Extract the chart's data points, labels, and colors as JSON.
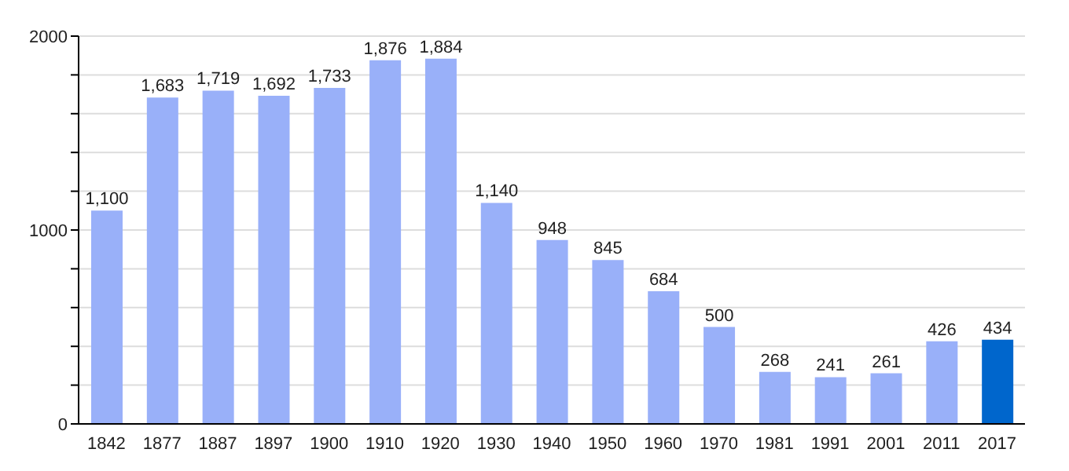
{
  "chart_data": {
    "type": "bar",
    "categories": [
      "1842",
      "1877",
      "1887",
      "1897",
      "1900",
      "1910",
      "1920",
      "1930",
      "1940",
      "1950",
      "1960",
      "1970",
      "1981",
      "1991",
      "2001",
      "2011",
      "2017"
    ],
    "values": [
      1100,
      1683,
      1719,
      1692,
      1733,
      1876,
      1884,
      1140,
      948,
      845,
      684,
      500,
      268,
      241,
      261,
      426,
      434
    ],
    "value_labels": [
      "1,100",
      "1,683",
      "1,719",
      "1,692",
      "1,733",
      "1,876",
      "1,884",
      "1,140",
      "948",
      "845",
      "684",
      "500",
      "268",
      "241",
      "261",
      "426",
      "434"
    ],
    "colors": [
      "#99b0f9",
      "#99b0f9",
      "#99b0f9",
      "#99b0f9",
      "#99b0f9",
      "#99b0f9",
      "#99b0f9",
      "#99b0f9",
      "#99b0f9",
      "#99b0f9",
      "#99b0f9",
      "#99b0f9",
      "#99b0f9",
      "#99b0f9",
      "#99b0f9",
      "#99b0f9",
      "#0066cc"
    ],
    "ylim": [
      0,
      2000
    ],
    "yticks": [
      0,
      {
        "value": 200,
        "label": null
      },
      {
        "value": 400,
        "label": null
      },
      {
        "value": 600,
        "label": null
      },
      {
        "value": 800,
        "label": null
      },
      1000,
      {
        "value": 1200,
        "label": null
      },
      {
        "value": 1400,
        "label": null
      },
      {
        "value": 1600,
        "label": null
      },
      {
        "value": 1800,
        "label": null
      },
      2000
    ],
    "grid": true
  }
}
